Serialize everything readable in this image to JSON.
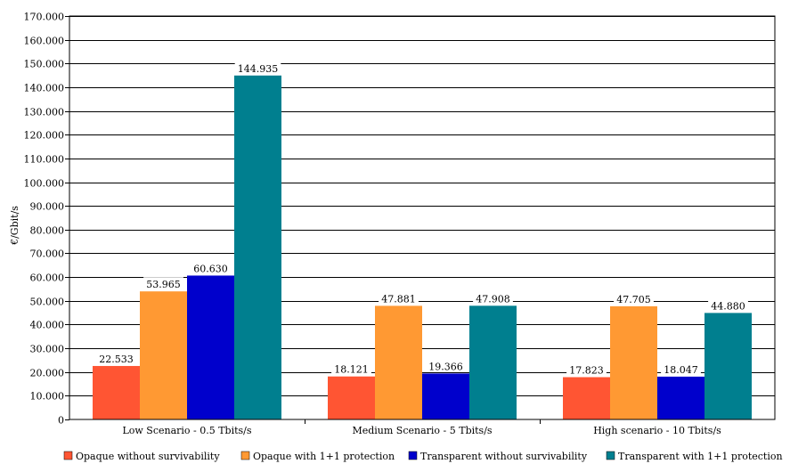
{
  "chart_data": {
    "type": "bar",
    "title": "",
    "xlabel": "",
    "ylabel": "€/Gbit/s",
    "ylim": [
      0,
      170000
    ],
    "ytick_step": 10000,
    "ytick_labels": [
      "0",
      "10.000",
      "20.000",
      "30.000",
      "40.000",
      "50.000",
      "60.000",
      "70.000",
      "80.000",
      "90.000",
      "100.000",
      "110.000",
      "120.000",
      "130.000",
      "140.000",
      "150.000",
      "160.000",
      "170.000"
    ],
    "grid": true,
    "legend_position": "bottom",
    "categories": [
      "Low Scenario - 0.5 Tbits/s",
      "Medium Scenario - 5 Tbits/s",
      "High scenario - 10 Tbits/s"
    ],
    "series": [
      {
        "name": "Opaque without survivability",
        "color": "#ff5533",
        "values": [
          22533,
          18121,
          17823
        ],
        "labels": [
          "22.533",
          "18.121",
          "17.823"
        ]
      },
      {
        "name": "Opaque with 1+1 protection",
        "color": "#ff9933",
        "values": [
          53965,
          47881,
          47705
        ],
        "labels": [
          "53.965",
          "47.881",
          "47.705"
        ]
      },
      {
        "name": "Transparent without survivability",
        "color": "#0000cc",
        "values": [
          60630,
          19366,
          18047
        ],
        "labels": [
          "60.630",
          "19.366",
          "18.047"
        ]
      },
      {
        "name": "Transparent with 1+1 protection",
        "color": "#007f8f",
        "values": [
          144935,
          47908,
          44880
        ],
        "labels": [
          "144.935",
          "47.908",
          "44.880"
        ]
      }
    ]
  }
}
